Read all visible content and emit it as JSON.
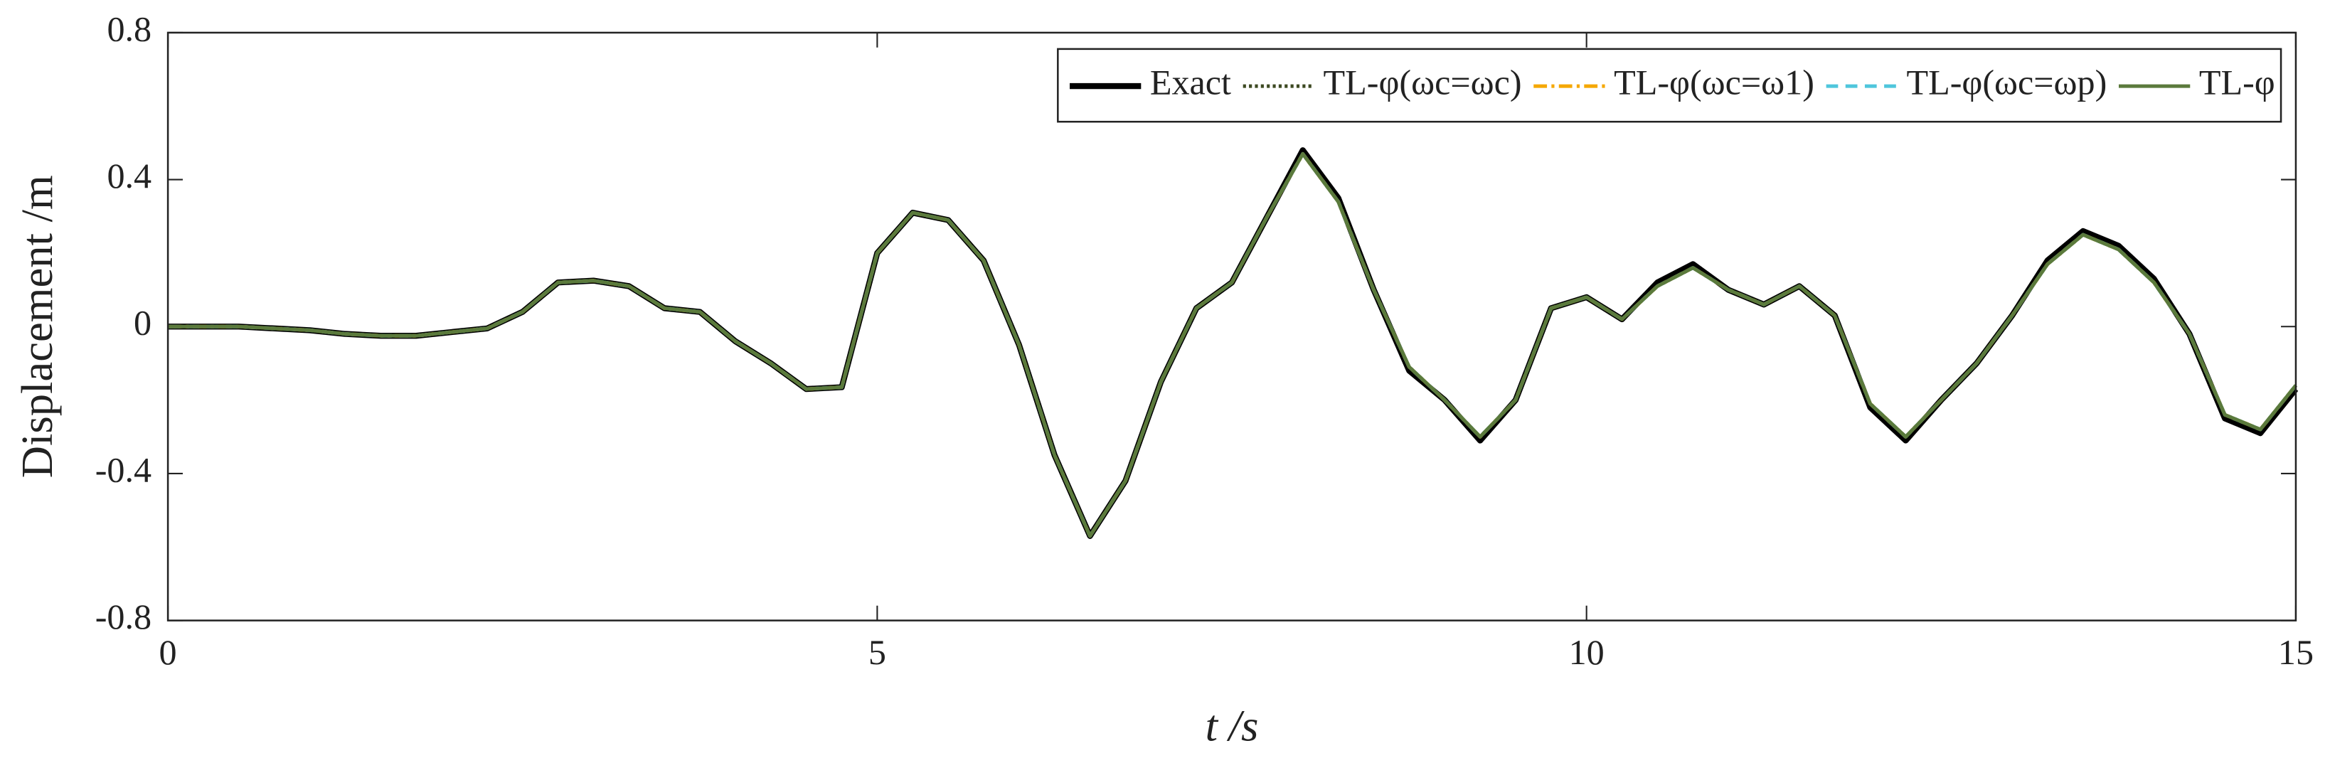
{
  "chart_data": {
    "type": "line",
    "xlabel": "t /s",
    "ylabel": "Displacement /m",
    "x": [
      0,
      0.25,
      0.5,
      0.75,
      1,
      1.25,
      1.5,
      1.75,
      2,
      2.25,
      2.5,
      2.75,
      3,
      3.25,
      3.5,
      3.75,
      4,
      4.25,
      4.5,
      4.75,
      5,
      5.25,
      5.5,
      5.75,
      6,
      6.25,
      6.5,
      6.75,
      7,
      7.25,
      7.5,
      7.75,
      8,
      8.25,
      8.5,
      8.75,
      9,
      9.25,
      9.5,
      9.75,
      10,
      10.25,
      10.5,
      10.75,
      11,
      11.25,
      11.5,
      11.75,
      12,
      12.25,
      12.5,
      12.75,
      13,
      13.25,
      13.5,
      13.75,
      14,
      14.25,
      14.5,
      14.75,
      15
    ],
    "series": [
      {
        "name": "Exact",
        "color": "#000000",
        "style": "solid",
        "values": [
          0,
          0,
          0,
          -0.005,
          -0.01,
          -0.02,
          -0.025,
          -0.025,
          -0.015,
          -0.005,
          0.04,
          0.12,
          0.125,
          0.11,
          0.05,
          0.04,
          -0.04,
          -0.1,
          -0.17,
          -0.165,
          0.2,
          0.31,
          0.29,
          0.18,
          -0.05,
          -0.35,
          -0.57,
          -0.42,
          -0.15,
          0.05,
          0.12,
          0.3,
          0.48,
          0.35,
          0.1,
          -0.12,
          -0.2,
          -0.31,
          -0.2,
          0.05,
          0.08,
          0.02,
          0.12,
          0.17,
          0.1,
          0.06,
          0.11,
          0.03,
          -0.22,
          -0.31,
          -0.2,
          -0.1,
          0.03,
          0.18,
          0.26,
          0.22,
          0.13,
          -0.02,
          -0.25,
          -0.29,
          -0.17
        ]
      },
      {
        "name": "TL-φ(ωc=ωc)",
        "color": "#3d4a22",
        "style": "dotted",
        "values": [
          0,
          0,
          0,
          -0.005,
          -0.01,
          -0.02,
          -0.025,
          -0.025,
          -0.015,
          -0.005,
          0.04,
          0.12,
          0.125,
          0.11,
          0.05,
          0.04,
          -0.04,
          -0.1,
          -0.17,
          -0.165,
          0.2,
          0.31,
          0.29,
          0.18,
          -0.05,
          -0.35,
          -0.57,
          -0.42,
          -0.15,
          0.05,
          0.12,
          0.3,
          0.47,
          0.34,
          0.1,
          -0.11,
          -0.2,
          -0.3,
          -0.2,
          0.05,
          0.08,
          0.02,
          0.11,
          0.16,
          0.1,
          0.06,
          0.11,
          0.03,
          -0.21,
          -0.3,
          -0.2,
          -0.1,
          0.03,
          0.17,
          0.25,
          0.21,
          0.12,
          -0.02,
          -0.24,
          -0.28,
          -0.16
        ]
      },
      {
        "name": "TL-φ(ωc=ω1)",
        "color": "#f5a800",
        "style": "dashdot",
        "values": [
          0,
          0,
          0,
          -0.005,
          -0.01,
          -0.02,
          -0.025,
          -0.025,
          -0.015,
          -0.005,
          0.04,
          0.12,
          0.125,
          0.11,
          0.05,
          0.04,
          -0.04,
          -0.1,
          -0.17,
          -0.165,
          0.2,
          0.31,
          0.29,
          0.18,
          -0.05,
          -0.35,
          -0.57,
          -0.42,
          -0.15,
          0.05,
          0.12,
          0.3,
          0.47,
          0.34,
          0.1,
          -0.11,
          -0.2,
          -0.3,
          -0.2,
          0.05,
          0.08,
          0.02,
          0.11,
          0.16,
          0.1,
          0.06,
          0.11,
          0.03,
          -0.21,
          -0.3,
          -0.2,
          -0.1,
          0.03,
          0.17,
          0.25,
          0.21,
          0.12,
          -0.02,
          -0.24,
          -0.28,
          -0.16
        ]
      },
      {
        "name": "TL-φ(ωc=ωp)",
        "color": "#4fc6dc",
        "style": "dashed",
        "values": [
          0,
          0,
          0,
          -0.005,
          -0.01,
          -0.02,
          -0.025,
          -0.025,
          -0.015,
          -0.005,
          0.04,
          0.12,
          0.125,
          0.11,
          0.05,
          0.04,
          -0.04,
          -0.1,
          -0.17,
          -0.165,
          0.2,
          0.31,
          0.29,
          0.18,
          -0.05,
          -0.35,
          -0.57,
          -0.42,
          -0.15,
          0.05,
          0.12,
          0.3,
          0.47,
          0.34,
          0.1,
          -0.11,
          -0.2,
          -0.3,
          -0.2,
          0.05,
          0.08,
          0.02,
          0.11,
          0.16,
          0.1,
          0.06,
          0.11,
          0.03,
          -0.21,
          -0.3,
          -0.2,
          -0.1,
          0.03,
          0.17,
          0.25,
          0.21,
          0.12,
          -0.02,
          -0.24,
          -0.28,
          -0.16
        ]
      },
      {
        "name": "TL-φ",
        "color": "#5b7a3c",
        "style": "solid",
        "values": [
          0,
          0,
          0,
          -0.005,
          -0.01,
          -0.02,
          -0.025,
          -0.025,
          -0.015,
          -0.005,
          0.04,
          0.12,
          0.125,
          0.11,
          0.05,
          0.04,
          -0.04,
          -0.1,
          -0.17,
          -0.165,
          0.2,
          0.31,
          0.29,
          0.18,
          -0.05,
          -0.35,
          -0.57,
          -0.42,
          -0.15,
          0.05,
          0.12,
          0.3,
          0.47,
          0.34,
          0.1,
          -0.11,
          -0.2,
          -0.3,
          -0.2,
          0.05,
          0.08,
          0.02,
          0.11,
          0.16,
          0.1,
          0.06,
          0.11,
          0.03,
          -0.21,
          -0.3,
          -0.2,
          -0.1,
          0.03,
          0.17,
          0.25,
          0.21,
          0.12,
          -0.02,
          -0.24,
          -0.28,
          -0.16
        ]
      }
    ],
    "xlim": [
      0,
      15
    ],
    "xticks": [
      0,
      5,
      10,
      15
    ],
    "ylim": [
      -0.8,
      0.8
    ],
    "yticks": [
      -0.8,
      -0.4,
      0,
      0.4,
      0.8
    ],
    "legend": "upper right",
    "grid": false
  }
}
